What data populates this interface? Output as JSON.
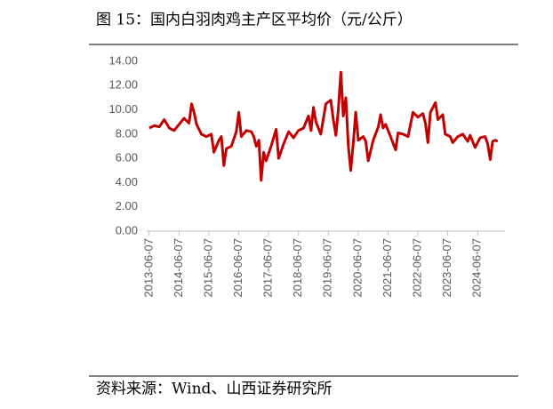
{
  "chart_data": {
    "type": "line",
    "title": "图 15：国内白羽肉鸡主产区平均价（元/公斤）",
    "source": "资料来源：Wind、山西证券研究所",
    "x": [
      "2013-06-07",
      "2013-08-07",
      "2013-10-07",
      "2013-12-07",
      "2014-02-07",
      "2014-04-07",
      "2014-06-07",
      "2014-08-07",
      "2014-10-07",
      "2014-11-07",
      "2014-12-07",
      "2015-01-07",
      "2015-03-07",
      "2015-05-07",
      "2015-07-07",
      "2015-08-07",
      "2015-10-07",
      "2015-11-07",
      "2015-12-07",
      "2016-01-07",
      "2016-03-07",
      "2016-05-07",
      "2016-06-07",
      "2016-07-07",
      "2016-09-07",
      "2016-11-07",
      "2016-12-07",
      "2017-01-07",
      "2017-02-07",
      "2017-03-07",
      "2017-04-07",
      "2017-05-07",
      "2017-07-07",
      "2017-09-07",
      "2017-10-07",
      "2017-12-07",
      "2018-02-07",
      "2018-04-07",
      "2018-06-07",
      "2018-08-07",
      "2018-10-07",
      "2018-11-07",
      "2018-12-07",
      "2019-01-07",
      "2019-03-07",
      "2019-05-07",
      "2019-07-07",
      "2019-08-07",
      "2019-09-07",
      "2019-10-07",
      "2019-11-07",
      "2019-12-07",
      "2020-01-07",
      "2020-02-07",
      "2020-03-07",
      "2020-04-07",
      "2020-05-07",
      "2020-06-07",
      "2020-08-07",
      "2020-09-07",
      "2020-10-07",
      "2020-12-07",
      "2021-02-07",
      "2021-03-07",
      "2021-04-07",
      "2021-05-07",
      "2021-07-07",
      "2021-09-07",
      "2021-10-07",
      "2021-12-07",
      "2022-02-07",
      "2022-04-07",
      "2022-06-07",
      "2022-08-07",
      "2022-09-07",
      "2022-10-07",
      "2022-11-07",
      "2023-01-07",
      "2023-02-07",
      "2023-04-07",
      "2023-05-07",
      "2023-07-07",
      "2023-08-07",
      "2023-10-07",
      "2023-12-07",
      "2024-02-07",
      "2024-03-07",
      "2024-05-07",
      "2024-07-07",
      "2024-09-07",
      "2024-10-07",
      "2024-11-07",
      "2024-12-07",
      "2025-01-07",
      "2025-02-07"
    ],
    "values": [
      8.5,
      8.7,
      8.6,
      9.2,
      8.5,
      8.3,
      8.8,
      9.3,
      8.9,
      10.5,
      9.8,
      8.8,
      8.0,
      7.8,
      8.0,
      6.5,
      7.5,
      7.8,
      5.4,
      6.8,
      7.0,
      8.2,
      9.8,
      7.8,
      8.3,
      8.2,
      7.8,
      7.0,
      7.5,
      4.2,
      6.5,
      5.8,
      7.0,
      8.4,
      6.0,
      7.2,
      8.2,
      7.7,
      8.3,
      8.5,
      9.5,
      8.3,
      10.2,
      9.0,
      8.0,
      10.5,
      10.8,
      9.2,
      7.9,
      10.0,
      13.1,
      9.5,
      11.0,
      7.0,
      5.0,
      7.2,
      9.8,
      7.5,
      7.8,
      7.4,
      5.8,
      7.5,
      8.6,
      9.6,
      8.5,
      8.8,
      7.8,
      6.7,
      8.1,
      8.0,
      7.8,
      9.8,
      9.4,
      9.7,
      8.9,
      7.3,
      9.8,
      10.6,
      9.2,
      9.6,
      8.0,
      7.8,
      7.3,
      7.8,
      8.0,
      7.4,
      7.9,
      6.9,
      7.7,
      7.8,
      7.2,
      5.9,
      7.4,
      7.5,
      7.4
    ],
    "color": "#c00000",
    "xlim": [
      "2013-05-07",
      "2025-05-07"
    ],
    "xticks": [
      "2013-06-07",
      "2014-06-07",
      "2015-06-07",
      "2016-06-07",
      "2017-06-07",
      "2018-06-07",
      "2019-06-07",
      "2020-06-07",
      "2021-06-07",
      "2022-06-07",
      "2023-06-07",
      "2024-06-07"
    ],
    "ylim": [
      0,
      14
    ],
    "yticks": [
      {
        "value": 0,
        "label": "0.00"
      },
      {
        "value": 2,
        "label": "2.00"
      },
      {
        "value": 4,
        "label": "4.00"
      },
      {
        "value": 6,
        "label": "6.00"
      },
      {
        "value": 8,
        "label": "8.00"
      },
      {
        "value": 10,
        "label": "10.00"
      },
      {
        "value": 12,
        "label": "12.00"
      },
      {
        "value": 14,
        "label": "14.00"
      }
    ],
    "grid": false
  }
}
